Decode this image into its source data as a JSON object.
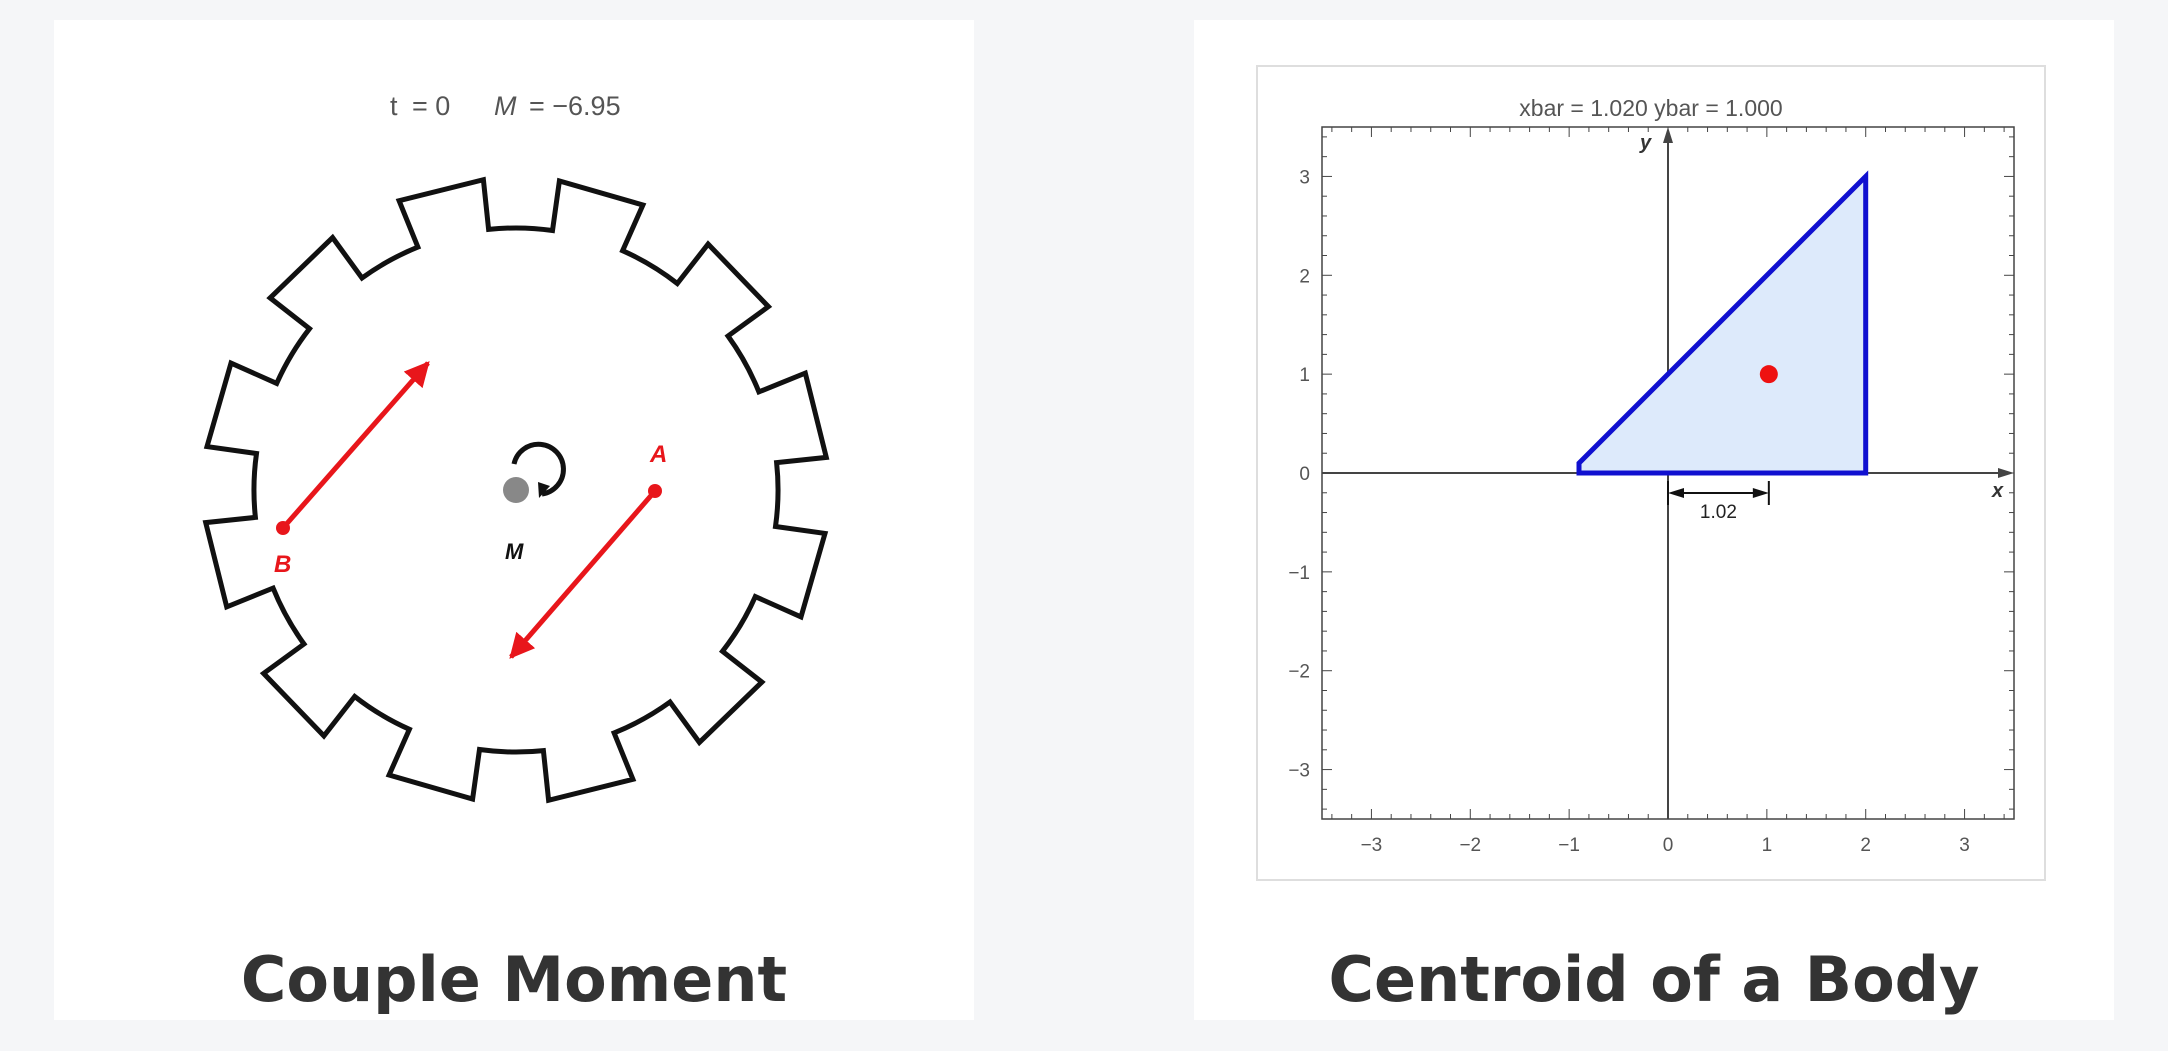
{
  "cards": [
    {
      "title": "Couple Moment",
      "caption": {
        "t_label": "t",
        "t_eq": "= 0",
        "m_label": "M",
        "m_eq": "= −6.95"
      },
      "labels": {
        "point_a": "A",
        "point_b": "B",
        "moment": "M"
      },
      "colors": {
        "force": "#e8161b",
        "gear": "#111111",
        "hub": "#888888"
      },
      "icon": "rotation-arrow-icon"
    },
    {
      "title": "Centroid of a Body",
      "chart_data": {
        "type": "area",
        "title": "xbar  = 1.020   ybar  = 1.000",
        "xlabel": "x",
        "ylabel": "y",
        "xlim": [
          -3.5,
          3.5
        ],
        "ylim": [
          -3.5,
          3.5
        ],
        "x_ticks": [
          "−3",
          "−2",
          "−1",
          "0",
          "1",
          "2",
          "3"
        ],
        "y_ticks": [
          "3",
          "2",
          "1",
          "0",
          "−1",
          "−2",
          "−3"
        ],
        "polygon": [
          [
            -0.9,
            0
          ],
          [
            2,
            0
          ],
          [
            2,
            3
          ],
          [
            -0.9,
            0.1
          ]
        ],
        "centroid": {
          "x": 1.02,
          "y": 1.0
        },
        "dimension_label": "1.02",
        "grid": false,
        "colors": {
          "fill": "#ddeafb",
          "edge": "#1010d0",
          "centroid": "#ee1111"
        }
      }
    }
  ]
}
